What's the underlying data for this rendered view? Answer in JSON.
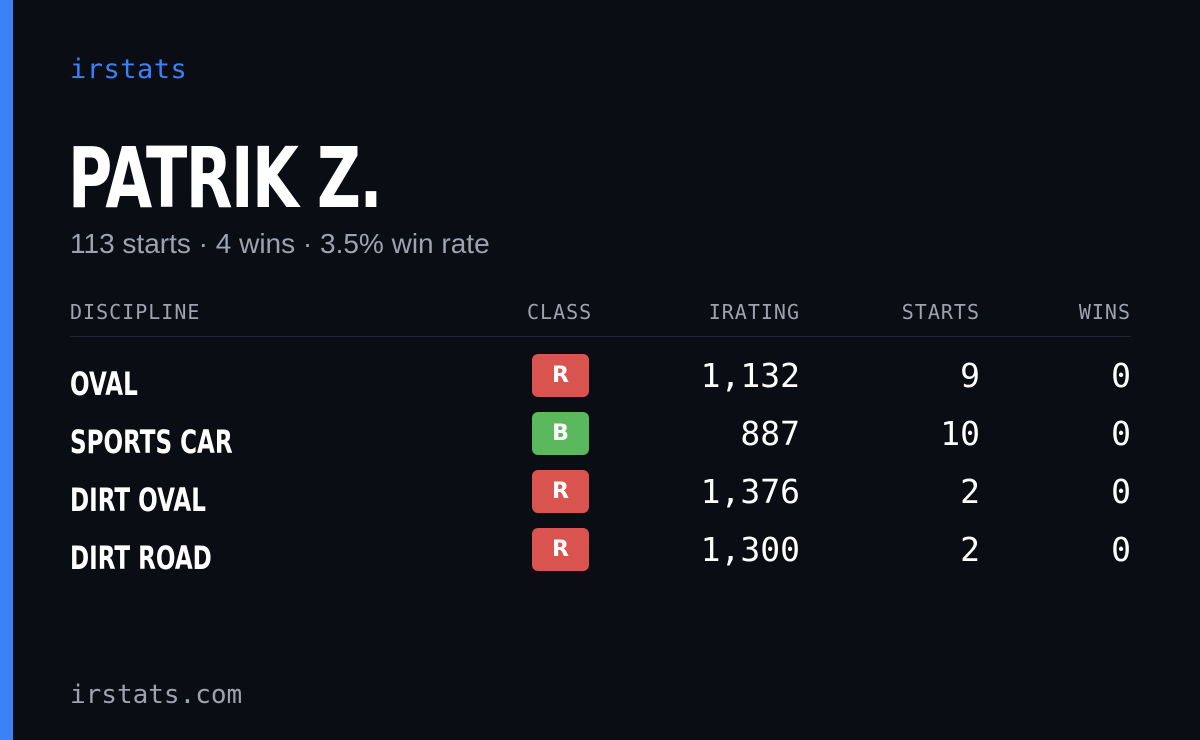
{
  "brand": "irstats",
  "driver": {
    "name": "PATRIK Z.",
    "summary": "113 starts · 4 wins · 3.5% win rate"
  },
  "table": {
    "headers": {
      "discipline": "DISCIPLINE",
      "class": "CLASS",
      "irating": "IRATING",
      "starts": "STARTS",
      "wins": "WINS"
    },
    "rows": [
      {
        "discipline": "OVAL",
        "class": "R",
        "class_color": "#d9534f",
        "irating": "1,132",
        "starts": "9",
        "wins": "0"
      },
      {
        "discipline": "SPORTS CAR",
        "class": "B",
        "class_color": "#5cb85c",
        "irating": "887",
        "starts": "10",
        "wins": "0"
      },
      {
        "discipline": "DIRT OVAL",
        "class": "R",
        "class_color": "#d9534f",
        "irating": "1,376",
        "starts": "2",
        "wins": "0"
      },
      {
        "discipline": "DIRT ROAD",
        "class": "R",
        "class_color": "#d9534f",
        "irating": "1,300",
        "starts": "2",
        "wins": "0"
      }
    ]
  },
  "footer": "irstats.com",
  "colors": {
    "accent": "#3b82f6",
    "background": "#0a0d14",
    "muted_text": "#9ca3af"
  }
}
